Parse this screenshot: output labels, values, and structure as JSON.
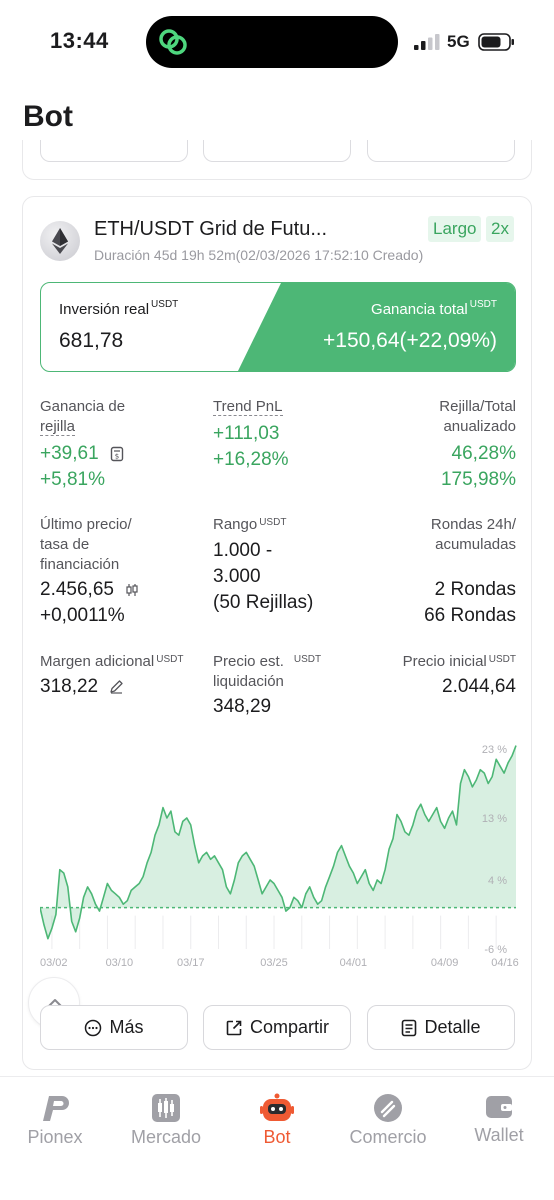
{
  "status_bar": {
    "time": "13:44",
    "network": "5G"
  },
  "page_title": "Bot",
  "bot": {
    "name": "ETH/USDT Grid de Futu...",
    "tags": [
      "Largo",
      "2x"
    ],
    "duration": "Duración 45d 19h 52m(02/03/2026 17:52:10 Creado)",
    "investment_label": "Inversión real",
    "investment_unit": "USDT",
    "investment_value": "681,78",
    "total_gain_label": "Ganancia total",
    "total_gain_unit": "USDT",
    "total_gain_value": "+150,64(+22,09%)"
  },
  "stats": {
    "grid_profit": {
      "label_1": "Ganancia de",
      "label_2": "rejilla",
      "value": "+39,61",
      "percent": "+5,81%"
    },
    "trend_pnl": {
      "label": "Trend PnL",
      "value": "+111,03",
      "percent": "+16,28%"
    },
    "grid_total": {
      "label_1": "Rejilla/Total",
      "label_2": "anualizado",
      "value_1": "46,28%",
      "value_2": "175,98%"
    },
    "last_price": {
      "label_1": "Último precio/",
      "label_2": "tasa de",
      "label_3": "financiación",
      "value": "2.456,65",
      "rate": "+0,0011%"
    },
    "range": {
      "label": "Rango",
      "unit": "USDT",
      "value_1": "1.000 -",
      "value_2": "3.000",
      "value_3": "(50 Rejillas)"
    },
    "rounds": {
      "label_1": "Rondas 24h/",
      "label_2": "acumuladas",
      "value_1": "2 Rondas",
      "value_2": "66 Rondas"
    },
    "extra_margin": {
      "label": "Margen adicional",
      "unit": "USDT",
      "value": "318,22"
    },
    "liq_price": {
      "label_1": "Precio est.",
      "label_2": "liquidación",
      "unit": "USDT",
      "value": "348,29"
    },
    "initial_price": {
      "label": "Precio inicial",
      "unit": "USDT",
      "value": "2.044,64"
    }
  },
  "chart_data": {
    "type": "area",
    "x_tick_labels": [
      "03/02",
      "03/10",
      "03/17",
      "03/25",
      "04/01",
      "04/09",
      "04/16"
    ],
    "y_tick_labels": [
      "23 %",
      "13 %",
      "4 %",
      "-6 %"
    ],
    "ylim": [
      -6,
      23
    ],
    "baseline": 0,
    "color": "#4db776",
    "series": [
      {
        "values": [
          0.0,
          -2.5,
          -4.5,
          -3.0,
          -1.0,
          5.5,
          5.0,
          3.0,
          -2.0,
          -3.5,
          -1.5,
          1.5,
          3.0,
          2.0,
          0.5,
          -0.5,
          1.5,
          3.5,
          2.5,
          2.0,
          1.5,
          0.5,
          1.0,
          2.5,
          3.0,
          3.5,
          4.5,
          6.5,
          8.0,
          10.5,
          12.0,
          14.5,
          13.0,
          14.0,
          11.0,
          10.5,
          12.5,
          13.0,
          12.0,
          9.0,
          6.5,
          7.5,
          8.0,
          7.0,
          7.5,
          6.5,
          5.5,
          3.0,
          2.0,
          4.0,
          6.5,
          7.5,
          8.0,
          7.0,
          6.0,
          4.0,
          2.0,
          3.0,
          4.0,
          3.5,
          2.5,
          1.5,
          -0.5,
          0.0,
          1.5,
          1.0,
          0.0,
          2.0,
          3.0,
          1.5,
          0.5,
          1.0,
          3.0,
          4.5,
          6.0,
          8.0,
          9.0,
          7.5,
          6.0,
          5.0,
          3.5,
          4.5,
          5.5,
          3.5,
          2.5,
          4.0,
          3.5,
          5.5,
          8.5,
          10.0,
          13.5,
          12.5,
          11.0,
          10.5,
          12.0,
          14.0,
          15.0,
          13.5,
          12.5,
          13.5,
          14.5,
          12.5,
          11.5,
          13.0,
          14.0,
          12.0,
          18.0,
          20.0,
          19.0,
          17.5,
          18.5,
          20.0,
          19.5,
          18.0,
          19.0,
          21.5,
          20.5,
          19.5,
          21.0,
          22.0,
          23.5
        ]
      }
    ]
  },
  "actions": {
    "more": "Más",
    "share": "Compartir",
    "detail": "Detalle"
  },
  "nav": {
    "pionex": "Pionex",
    "market": "Mercado",
    "bot": "Bot",
    "trade": "Comercio",
    "wallet": "Wallet"
  },
  "colors": {
    "accent_green": "#4db776",
    "text_green": "#3aa55f",
    "nav_active": "#ef5a33"
  }
}
